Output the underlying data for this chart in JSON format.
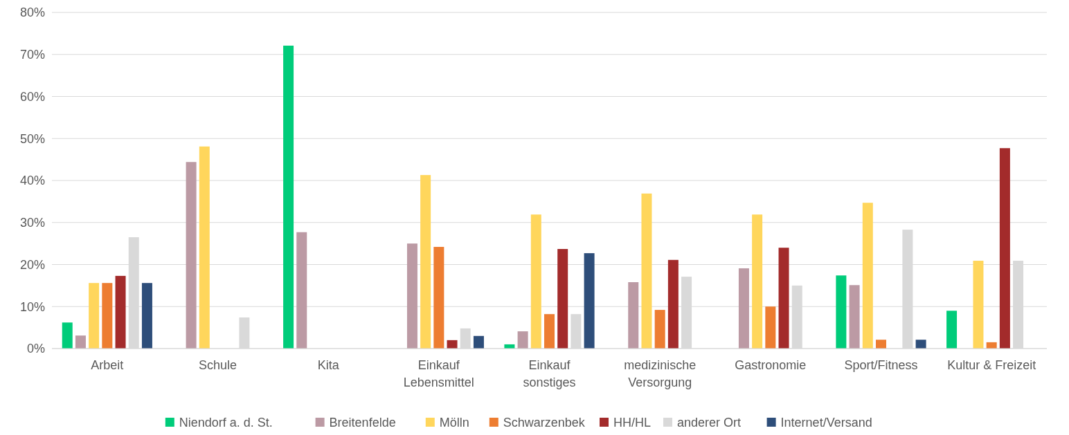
{
  "chart_data": {
    "type": "bar",
    "categories": [
      "Arbeit",
      "Schule",
      "Kita",
      "Einkauf\nLebensmittel",
      "Einkauf\nsonstiges",
      "medizinische\nVersorgung",
      "Gastronomie",
      "Sport/Fitness",
      "Kultur & Freizeit"
    ],
    "series": [
      {
        "name": "Niendorf a. d. St.",
        "color": "#00cc7a",
        "values": [
          6.2,
          null,
          72.1,
          null,
          1.0,
          null,
          null,
          17.4,
          9.0
        ]
      },
      {
        "name": "Breitenfelde",
        "color": "#bc9aa4",
        "values": [
          3.1,
          44.4,
          27.7,
          25.0,
          4.1,
          15.8,
          19.1,
          15.1,
          null
        ]
      },
      {
        "name": "Mölln",
        "color": "#ffd65c",
        "values": [
          15.6,
          48.1,
          null,
          41.3,
          31.9,
          36.9,
          31.9,
          34.7,
          20.9
        ]
      },
      {
        "name": "Schwarzenbek",
        "color": "#ed7d31",
        "values": [
          15.6,
          null,
          null,
          24.2,
          8.2,
          9.2,
          10.0,
          2.1,
          1.5
        ]
      },
      {
        "name": "HH/HL",
        "color": "#a32b2b",
        "values": [
          17.3,
          null,
          null,
          2.0,
          23.7,
          21.1,
          24.0,
          null,
          47.7
        ]
      },
      {
        "name": "anderer Ort",
        "color": "#d9d9d9",
        "values": [
          26.5,
          7.4,
          null,
          4.8,
          8.2,
          17.1,
          15.0,
          28.3,
          20.9
        ]
      },
      {
        "name": "Internet/Versand",
        "color": "#2e4e7a",
        "values": [
          15.6,
          null,
          null,
          3.0,
          22.7,
          null,
          null,
          2.1,
          null
        ]
      }
    ],
    "ylim": [
      0,
      80
    ],
    "yticks": [
      {
        "value": 0,
        "label": "0%"
      },
      {
        "value": 10,
        "label": "10%"
      },
      {
        "value": 20,
        "label": "20%"
      },
      {
        "value": 30,
        "label": "30%"
      },
      {
        "value": 40,
        "label": "40%"
      },
      {
        "value": 50,
        "label": "50%"
      },
      {
        "value": 60,
        "label": "60%"
      },
      {
        "value": 70,
        "label": "70%"
      },
      {
        "value": 80,
        "label": "80%"
      }
    ],
    "grid": "y",
    "legend": "bottom"
  }
}
